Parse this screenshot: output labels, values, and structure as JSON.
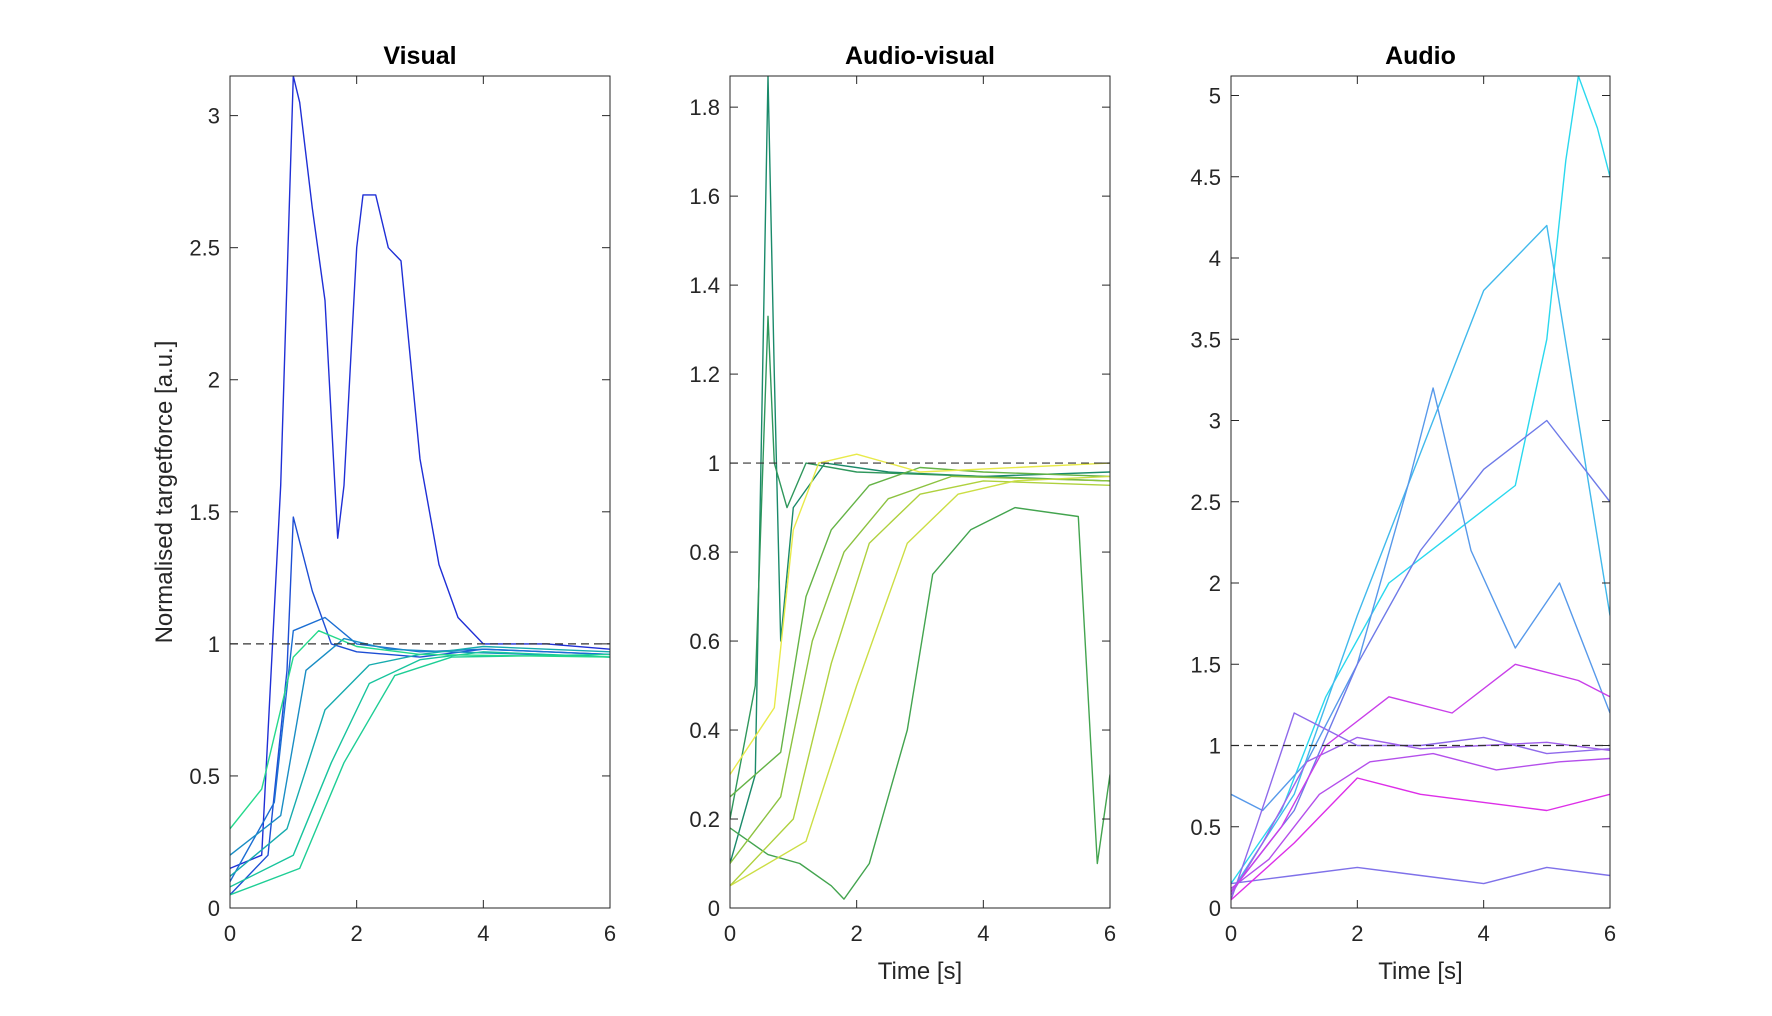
{
  "chart_data": [
    {
      "type": "line",
      "title": "Visual",
      "xlabel": "",
      "ylabel": "Normalised targetforce [a.u.]",
      "xlim": [
        0,
        6
      ],
      "ylim": [
        0,
        3.15
      ],
      "xticks": [
        "0",
        "2",
        "4",
        "6"
      ],
      "yticks": [
        "0",
        "0.5",
        "1",
        "1.5",
        "2",
        "2.5",
        "3"
      ],
      "ytick_values": [
        0,
        0.5,
        1,
        1.5,
        2,
        2.5,
        3
      ],
      "reference_line": 1,
      "colormap": [
        "#1f2fd6",
        "#1a78d2",
        "#15c0a0",
        "#25d98c"
      ],
      "series": [
        {
          "x": [
            0,
            0.5,
            0.8,
            1.0,
            1.1,
            1.3,
            1.5,
            1.7,
            1.8,
            2.0,
            2.1,
            2.3,
            2.5,
            2.7,
            3.0,
            3.3,
            3.6,
            4.0,
            5.0,
            6.0
          ],
          "y": [
            0.15,
            0.2,
            1.6,
            3.15,
            3.05,
            2.65,
            2.3,
            1.4,
            1.6,
            2.5,
            2.7,
            2.7,
            2.5,
            2.45,
            1.7,
            1.3,
            1.1,
            1.0,
            1.0,
            0.98
          ]
        },
        {
          "x": [
            0,
            0.6,
            0.9,
            1.0,
            1.3,
            1.6,
            2.0,
            3.0,
            4.0,
            6.0
          ],
          "y": [
            0.05,
            0.2,
            0.9,
            1.48,
            1.2,
            1.0,
            0.97,
            0.95,
            0.98,
            0.96
          ]
        },
        {
          "x": [
            0,
            0.7,
            1.0,
            1.5,
            2.0,
            3.0,
            4.0,
            6.0
          ],
          "y": [
            0.1,
            0.4,
            1.05,
            1.1,
            1.0,
            0.97,
            0.98,
            0.96
          ]
        },
        {
          "x": [
            0,
            0.8,
            1.2,
            1.8,
            2.5,
            3.5,
            6.0
          ],
          "y": [
            0.2,
            0.35,
            0.9,
            1.02,
            0.98,
            0.97,
            0.95
          ]
        },
        {
          "x": [
            0,
            0.9,
            1.5,
            2.2,
            3.0,
            4.0,
            6.0
          ],
          "y": [
            0.12,
            0.3,
            0.75,
            0.92,
            0.96,
            0.99,
            0.97
          ]
        },
        {
          "x": [
            0,
            1.0,
            1.6,
            2.2,
            3.0,
            4.0,
            6.0
          ],
          "y": [
            0.08,
            0.2,
            0.55,
            0.85,
            0.94,
            0.97,
            0.95
          ]
        },
        {
          "x": [
            0,
            1.1,
            1.8,
            2.6,
            3.5,
            6.0
          ],
          "y": [
            0.05,
            0.15,
            0.55,
            0.88,
            0.95,
            0.96
          ]
        },
        {
          "x": [
            0,
            0.5,
            1.0,
            1.4,
            2.0,
            3.0,
            6.0
          ],
          "y": [
            0.3,
            0.45,
            0.95,
            1.05,
            0.99,
            0.96,
            0.95
          ]
        }
      ]
    },
    {
      "type": "line",
      "title": "Audio-visual",
      "xlabel": "Time [s]",
      "ylabel": "",
      "xlim": [
        0,
        6
      ],
      "ylim": [
        0,
        1.87
      ],
      "xticks": [
        "0",
        "2",
        "4",
        "6"
      ],
      "yticks": [
        "0",
        "0.2",
        "0.4",
        "0.6",
        "0.8",
        "1",
        "1.2",
        "1.4",
        "1.6",
        "1.8"
      ],
      "ytick_values": [
        0,
        0.2,
        0.4,
        0.6,
        0.8,
        1,
        1.2,
        1.4,
        1.6,
        1.8
      ],
      "reference_line": 1,
      "colormap": [
        "#1a8a6a",
        "#4aa84a",
        "#a6cd3c",
        "#e8ea4a"
      ],
      "series": [
        {
          "x": [
            0,
            0.4,
            0.6,
            0.7,
            0.8,
            1.0,
            1.5,
            2.5,
            4.0,
            6.0
          ],
          "y": [
            0.1,
            0.3,
            1.87,
            1.2,
            0.6,
            0.9,
            1.0,
            0.98,
            0.97,
            0.98
          ]
        },
        {
          "x": [
            0,
            0.4,
            0.6,
            0.7,
            0.9,
            1.2,
            2.0,
            4.0,
            6.0
          ],
          "y": [
            0.2,
            0.5,
            1.33,
            1.0,
            0.9,
            1.0,
            0.98,
            0.97,
            0.96
          ]
        },
        {
          "x": [
            0,
            0.6,
            1.1,
            1.6,
            1.8,
            2.2,
            2.8,
            3.2,
            3.8,
            4.5,
            5.5,
            5.8,
            6.0
          ],
          "y": [
            0.18,
            0.12,
            0.1,
            0.05,
            0.02,
            0.1,
            0.4,
            0.75,
            0.85,
            0.9,
            0.88,
            0.1,
            0.3
          ]
        },
        {
          "x": [
            0,
            0.8,
            1.2,
            1.6,
            2.2,
            3.0,
            4.0,
            6.0
          ],
          "y": [
            0.25,
            0.35,
            0.7,
            0.85,
            0.95,
            0.99,
            0.98,
            0.97
          ]
        },
        {
          "x": [
            0,
            0.8,
            1.3,
            1.8,
            2.5,
            3.5,
            6.0
          ],
          "y": [
            0.1,
            0.25,
            0.6,
            0.8,
            0.92,
            0.97,
            0.96
          ]
        },
        {
          "x": [
            0,
            1.0,
            1.6,
            2.2,
            3.0,
            4.0,
            6.0
          ],
          "y": [
            0.05,
            0.2,
            0.55,
            0.82,
            0.93,
            0.96,
            0.95
          ]
        },
        {
          "x": [
            0,
            1.2,
            2.0,
            2.8,
            3.6,
            4.5,
            6.0
          ],
          "y": [
            0.05,
            0.15,
            0.5,
            0.82,
            0.93,
            0.96,
            0.97
          ]
        },
        {
          "x": [
            0,
            0.7,
            1.0,
            1.4,
            2.0,
            3.0,
            6.0
          ],
          "y": [
            0.3,
            0.45,
            0.85,
            1.0,
            1.02,
            0.98,
            1.0
          ]
        }
      ]
    },
    {
      "type": "line",
      "title": "Audio",
      "xlabel": "Time [s]",
      "ylabel": "",
      "xlim": [
        0,
        6
      ],
      "ylim": [
        0,
        5.12
      ],
      "xticks": [
        "0",
        "2",
        "4",
        "6"
      ],
      "yticks": [
        "0",
        "0.5",
        "1",
        "1.5",
        "2",
        "2.5",
        "3",
        "3.5",
        "4",
        "4.5",
        "5"
      ],
      "ytick_values": [
        0,
        0.5,
        1,
        1.5,
        2,
        2.5,
        3,
        3.5,
        4,
        4.5,
        5
      ],
      "reference_line": 1,
      "colormap": [
        "#2ad8ee",
        "#6e7ae8",
        "#a060ec",
        "#dd2ee8"
      ],
      "series": [
        {
          "x": [
            0,
            0.8,
            1.5,
            2.5,
            3.5,
            4.5,
            5.0,
            5.3,
            5.5,
            5.8,
            6.0
          ],
          "y": [
            0.15,
            0.6,
            1.3,
            2.0,
            2.3,
            2.6,
            3.5,
            4.6,
            5.12,
            4.8,
            4.5
          ]
        },
        {
          "x": [
            0,
            1.0,
            2.0,
            3.0,
            4.0,
            4.5,
            5.0,
            5.5,
            6.0
          ],
          "y": [
            0.1,
            0.7,
            1.8,
            2.8,
            3.8,
            4.0,
            4.2,
            3.0,
            1.8
          ]
        },
        {
          "x": [
            0,
            0.5,
            1.2,
            2.0,
            2.8,
            3.2,
            3.8,
            4.5,
            5.2,
            6.0
          ],
          "y": [
            0.7,
            0.6,
            0.9,
            1.5,
            2.6,
            3.2,
            2.2,
            1.6,
            2.0,
            1.2
          ]
        },
        {
          "x": [
            0,
            1.0,
            2.0,
            3.0,
            4.0,
            5.0,
            6.0
          ],
          "y": [
            0.1,
            0.6,
            1.5,
            2.2,
            2.7,
            3.0,
            2.5
          ]
        },
        {
          "x": [
            0,
            1.0,
            2.0,
            3.0,
            4.0,
            5.0,
            6.0
          ],
          "y": [
            0.15,
            0.2,
            0.25,
            0.2,
            0.15,
            0.25,
            0.2
          ]
        },
        {
          "x": [
            0,
            0.4,
            1.0,
            1.5,
            2.0,
            3.0,
            4.0,
            5.0,
            6.0
          ],
          "y": [
            0.05,
            0.5,
            1.2,
            1.1,
            1.0,
            1.0,
            1.05,
            0.95,
            0.98
          ]
        },
        {
          "x": [
            0,
            0.5,
            1.2,
            2.0,
            3.0,
            4.0,
            5.0,
            6.0
          ],
          "y": [
            0.08,
            0.4,
            0.9,
            1.05,
            0.98,
            1.0,
            1.02,
            0.97
          ]
        },
        {
          "x": [
            0,
            0.6,
            1.4,
            2.2,
            3.2,
            4.2,
            5.2,
            6.0
          ],
          "y": [
            0.12,
            0.3,
            0.7,
            0.9,
            0.95,
            0.85,
            0.9,
            0.92
          ]
        },
        {
          "x": [
            0,
            0.8,
            1.5,
            2.5,
            3.5,
            4.5,
            5.5,
            6.0
          ],
          "y": [
            0.1,
            0.5,
            1.0,
            1.3,
            1.2,
            1.5,
            1.4,
            1.3
          ]
        },
        {
          "x": [
            0,
            1.0,
            2.0,
            3.0,
            4.0,
            5.0,
            6.0
          ],
          "y": [
            0.05,
            0.4,
            0.8,
            0.7,
            0.65,
            0.6,
            0.7
          ]
        }
      ]
    }
  ]
}
